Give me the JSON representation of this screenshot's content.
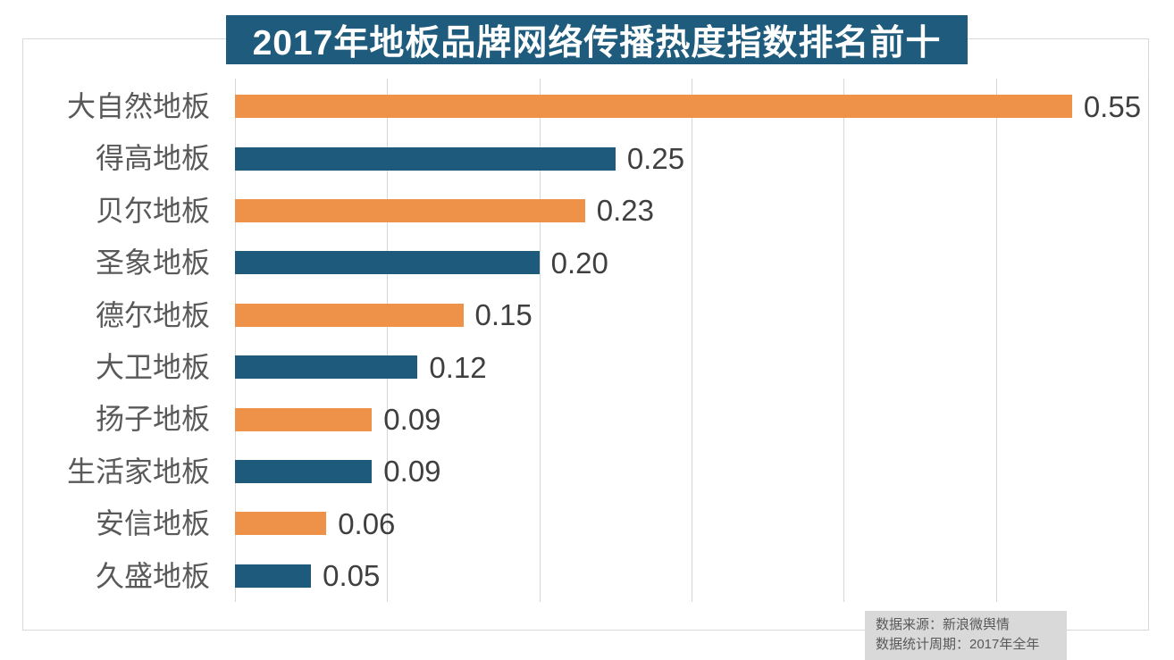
{
  "title": {
    "text": "2017年地板品牌网络传播热度指数排名前十"
  },
  "footer": {
    "source_line": "数据来源：新浪微舆情",
    "period_line": "数据统计周期：2017年全年"
  },
  "colors": {
    "banner_bg": "#1E5B7C",
    "bar_orange": "#EF9249",
    "bar_blue": "#1D5A7C",
    "grid": "#D6D6D6",
    "category_text": "#595959",
    "value_text": "#3F3F3F",
    "footer_bg": "#D9D9D9",
    "footer_text": "#595959"
  },
  "chart_data": {
    "type": "bar",
    "orientation": "horizontal",
    "title": "2017年地板品牌网络传播热度指数排名前十",
    "categories": [
      "大自然地板",
      "得高地板",
      "贝尔地板",
      "圣象地板",
      "德尔地板",
      "大卫地板",
      "扬子地板",
      "生活家地板",
      "安信地板",
      "久盛地板"
    ],
    "values": [
      0.55,
      0.25,
      0.23,
      0.2,
      0.15,
      0.12,
      0.09,
      0.09,
      0.06,
      0.05
    ],
    "value_labels": [
      "0.55",
      "0.25",
      "0.23",
      "0.20",
      "0.15",
      "0.12",
      "0.09",
      "0.09",
      "0.06",
      "0.05"
    ],
    "xlabel": "",
    "ylabel": "",
    "xlim": [
      0,
      0.6
    ],
    "grid_interval": 0.1,
    "grid": true,
    "legend": false,
    "bar_color_pattern": [
      "#EF9249",
      "#1D5A7C"
    ],
    "annotations": [
      "数据来源：新浪微舆情",
      "数据统计周期：2017年全年"
    ]
  }
}
